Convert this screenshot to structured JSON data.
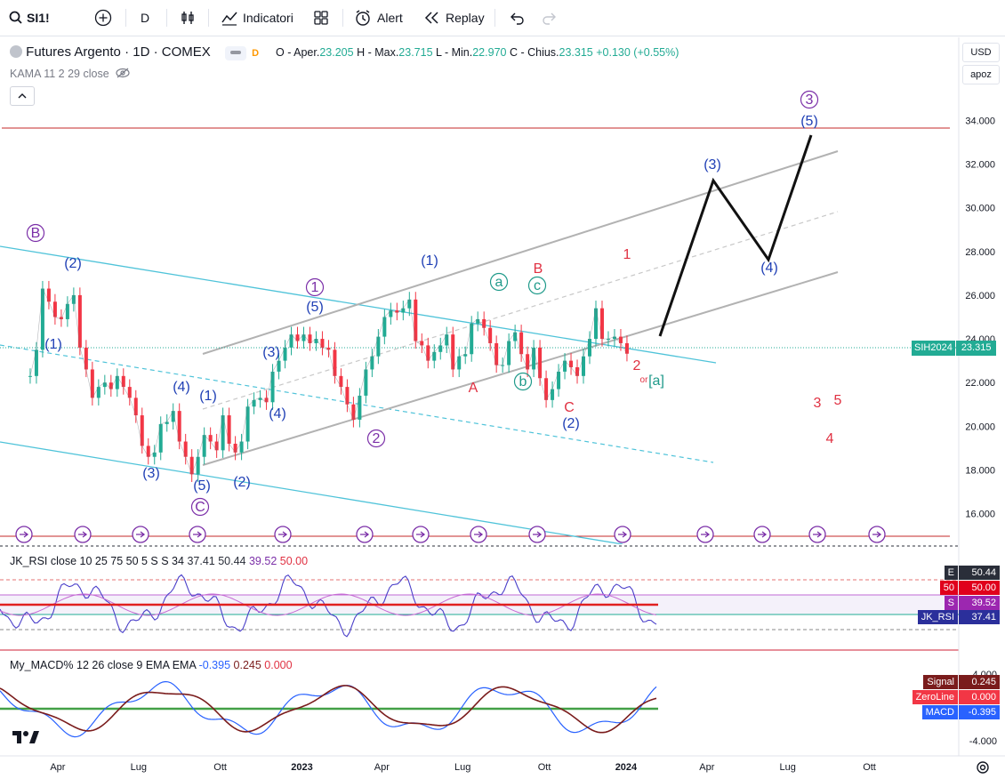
{
  "toolbar": {
    "symbol": "SI1!",
    "interval": "D",
    "indicators_label": "Indicatori",
    "alert_label": "Alert",
    "replay_label": "Replay"
  },
  "header": {
    "title": "Futures Argento · 1D · COMEX",
    "open_label": "O - Aper.",
    "open": "23.205",
    "high_label": "H - Max.",
    "high": "23.715",
    "low_label": "L - Min.",
    "low": "22.970",
    "close_label": "C - Chius.",
    "close": "23.315",
    "change": "+0.130 (+0.55%)",
    "kama_label": "KAMA 11 2 29 close"
  },
  "right_panel": {
    "currency": "USD",
    "mode": "apoz"
  },
  "chart_data": [
    {
      "type": "line",
      "title": "Futures Argento · 1D · COMEX",
      "note": "Daily silver futures candles approximated as close-price series with Elliott wave annotations",
      "y_ticks": [
        "34.000",
        "32.000",
        "30.000",
        "28.000",
        "26.000",
        "24.000",
        "22.000",
        "20.000",
        "18.000",
        "16.000"
      ],
      "ylim": [
        14.6,
        37.8
      ],
      "x_ticks": [
        "Apr",
        "Lug",
        "Ott",
        "2023",
        "Apr",
        "Lug",
        "Ott",
        "2024",
        "Apr",
        "Lug",
        "Ott"
      ],
      "price_label": {
        "symbol": "SIH2024",
        "value": "23.315"
      },
      "series": [
        {
          "name": "",
          "x": [
            "2022-03-01",
            "2022-03-08",
            "2022-03-15",
            "2022-03-22",
            "2022-03-29",
            "2022-04-05",
            "2022-04-12",
            "2022-04-19",
            "2022-04-26",
            "2022-05-03",
            "2022-05-10",
            "2022-05-17",
            "2022-05-24",
            "2022-05-31",
            "2022-06-07",
            "2022-06-14",
            "2022-06-21",
            "2022-06-28",
            "2022-07-05",
            "2022-07-12",
            "2022-07-19",
            "2022-07-26",
            "2022-08-02",
            "2022-08-09",
            "2022-08-16",
            "2022-08-23",
            "2022-08-30",
            "2022-09-06",
            "2022-09-13",
            "2022-09-20",
            "2022-09-27",
            "2022-10-04",
            "2022-10-11",
            "2022-10-18",
            "2022-10-25",
            "2022-11-01",
            "2022-11-08",
            "2022-11-15",
            "2022-11-22",
            "2022-11-29",
            "2022-12-06",
            "2022-12-13",
            "2022-12-20",
            "2022-12-27",
            "2023-01-03",
            "2023-01-10",
            "2023-01-17",
            "2023-01-24",
            "2023-01-31",
            "2023-02-07",
            "2023-02-14",
            "2023-02-21",
            "2023-02-28",
            "2023-03-07",
            "2023-03-14",
            "2023-03-21",
            "2023-03-28",
            "2023-04-04",
            "2023-04-11",
            "2023-04-18",
            "2023-04-25",
            "2023-05-02",
            "2023-05-09",
            "2023-05-16",
            "2023-05-23",
            "2023-05-30",
            "2023-06-06",
            "2023-06-13",
            "2023-06-20",
            "2023-06-27",
            "2023-07-04",
            "2023-07-11",
            "2023-07-18",
            "2023-07-25",
            "2023-08-01",
            "2023-08-08",
            "2023-08-15",
            "2023-08-22",
            "2023-08-29",
            "2023-09-05",
            "2023-09-12",
            "2023-09-19",
            "2023-09-26",
            "2023-10-03",
            "2023-10-10",
            "2023-10-17",
            "2023-10-24",
            "2023-10-31",
            "2023-11-07",
            "2023-11-14",
            "2023-11-21",
            "2023-11-28",
            "2023-12-05",
            "2023-12-12",
            "2023-12-19",
            "2023-12-26",
            "2024-01-02"
          ],
          "values": [
            22.3,
            23.5,
            26.3,
            25.7,
            25.0,
            24.9,
            25.6,
            26.0,
            23.6,
            22.6,
            21.3,
            21.8,
            22.0,
            21.7,
            22.3,
            21.8,
            21.3,
            20.5,
            19.1,
            18.6,
            18.8,
            20.1,
            20.2,
            20.7,
            19.3,
            18.6,
            17.8,
            18.6,
            19.6,
            19.3,
            18.9,
            20.5,
            19.2,
            18.8,
            19.3,
            20.9,
            21.2,
            21.3,
            21.1,
            22.5,
            23.0,
            23.6,
            24.2,
            23.9,
            24.2,
            23.8,
            24.0,
            23.6,
            23.5,
            22.3,
            21.8,
            21.0,
            20.3,
            21.4,
            22.6,
            23.2,
            24.1,
            25.0,
            25.3,
            25.2,
            25.4,
            25.8,
            23.9,
            23.7,
            23.0,
            23.4,
            23.7,
            24.2,
            22.6,
            23.2,
            23.3,
            24.7,
            24.9,
            24.5,
            23.8,
            22.8,
            22.8,
            23.9,
            24.3,
            23.3,
            22.6,
            23.6,
            22.2,
            21.2,
            21.7,
            22.5,
            23.0,
            22.7,
            22.3,
            23.2,
            24.0,
            25.4,
            24.0,
            24.0,
            24.1,
            23.8,
            23.32
          ]
        }
      ],
      "wave_labels": [
        "B",
        "(2)",
        "(1)",
        "(4)",
        "(1)",
        "(3)",
        "(5)",
        "C",
        "(2)",
        "(3)",
        "(4)",
        "1",
        "(5)",
        "(1)",
        "2",
        "a",
        "c",
        "B",
        "A",
        "b",
        "C",
        "(2)",
        "1",
        "2",
        "or",
        "[a]",
        "(3)",
        "(4)",
        "3",
        "(5)",
        "3",
        "5",
        "4"
      ]
    },
    {
      "type": "line",
      "title": "JK_RSI close 10 25 75 50 5 S S 34",
      "legend_values": [
        "37.41",
        "50.44",
        "39.52",
        "50.00"
      ],
      "labels": [
        {
          "tag": "E",
          "value": "50.44"
        },
        {
          "tag": "50",
          "value": "50.00"
        },
        {
          "tag": "S",
          "value": "39.52"
        },
        {
          "tag": "JK_RSI",
          "value": "37.41"
        }
      ]
    },
    {
      "type": "line",
      "title": "My_MACD% 12 26 close 9 EMA EMA",
      "legend_values": [
        "-0.395",
        "0.245",
        "0.000"
      ],
      "y_ticks": [
        "4.000",
        "-4.000"
      ],
      "labels": [
        {
          "tag": "Signal",
          "value": "0.245"
        },
        {
          "tag": "ZeroLine",
          "value": "0.000"
        },
        {
          "tag": "MACD",
          "value": "-0.395"
        }
      ]
    }
  ],
  "colors": {
    "wave_blue": "#1f3fb5",
    "wave_purple": "#7b2fa8",
    "wave_red": "#e03142",
    "wave_green": "#1f9a8a",
    "up": "#22ab94",
    "down": "#f23645"
  }
}
